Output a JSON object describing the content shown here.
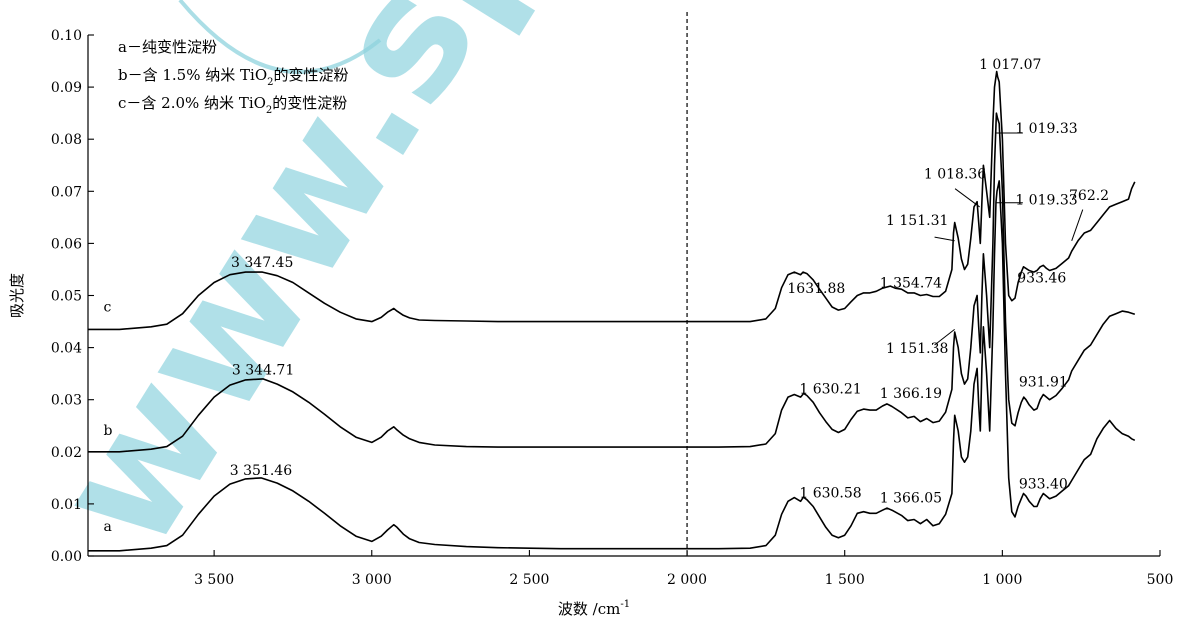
{
  "watermark": {
    "text": "www.spm"
  },
  "chart_data": {
    "type": "line",
    "title": "",
    "xlabel": "波数 /cm",
    "xlabel_sup": "-1",
    "ylabel": "吸光度",
    "x_reversed": true,
    "xlim": [
      3900,
      500
    ],
    "ylim": [
      0,
      0.1
    ],
    "x_ticks": [
      {
        "value": 3500,
        "label": "3 500"
      },
      {
        "value": 3000,
        "label": "3 000"
      },
      {
        "value": 2500,
        "label": "2 500"
      },
      {
        "value": 2000,
        "label": "2 000"
      },
      {
        "value": 1500,
        "label": "1 500"
      },
      {
        "value": 1000,
        "label": "1 000"
      },
      {
        "value": 500,
        "label": "500"
      }
    ],
    "y_ticks": [
      {
        "value": 0.0,
        "label": "0.00"
      },
      {
        "value": 0.01,
        "label": "0.01"
      },
      {
        "value": 0.02,
        "label": "0.02"
      },
      {
        "value": 0.03,
        "label": "0.03"
      },
      {
        "value": 0.04,
        "label": "0.04"
      },
      {
        "value": 0.05,
        "label": "0.05"
      },
      {
        "value": 0.06,
        "label": "0.06"
      },
      {
        "value": 0.07,
        "label": "0.07"
      },
      {
        "value": 0.08,
        "label": "0.08"
      },
      {
        "value": 0.09,
        "label": "0.09"
      },
      {
        "value": 0.1,
        "label": "0.10"
      }
    ],
    "divider_x": 2000,
    "legend": {
      "position": "top-left",
      "entries": [
        {
          "text": "a－纯变性淀粉"
        },
        {
          "text": "b－含 1.5% 纳米 TiO",
          "sub": "2",
          "suffix": "的变性淀粉"
        },
        {
          "text": "c－含 2.0% 纳米 TiO",
          "sub": "2",
          "suffix": "的变性淀粉"
        }
      ]
    },
    "series": [
      {
        "name": "a",
        "x": [
          3900,
          3800,
          3700,
          3650,
          3600,
          3550,
          3500,
          3450,
          3400,
          3351,
          3300,
          3250,
          3200,
          3150,
          3100,
          3050,
          3000,
          2970,
          2950,
          2930,
          2920,
          2900,
          2880,
          2850,
          2800,
          2700,
          2600,
          2500,
          2400,
          2300,
          2200,
          2100,
          2000,
          1900,
          1800,
          1750,
          1720,
          1700,
          1680,
          1660,
          1640,
          1631,
          1620,
          1600,
          1580,
          1560,
          1540,
          1520,
          1500,
          1480,
          1460,
          1440,
          1420,
          1400,
          1380,
          1366,
          1350,
          1320,
          1300,
          1280,
          1260,
          1240,
          1220,
          1200,
          1180,
          1160,
          1155,
          1151,
          1140,
          1130,
          1120,
          1110,
          1100,
          1090,
          1080,
          1075,
          1070,
          1065,
          1060,
          1050,
          1040,
          1030,
          1025,
          1020,
          1017,
          1010,
          1000,
          990,
          980,
          970,
          960,
          950,
          940,
          933,
          925,
          915,
          900,
          890,
          880,
          870,
          860,
          850,
          830,
          810,
          790,
          780,
          760,
          740,
          720,
          700,
          680,
          660,
          640,
          620,
          600,
          590,
          580
        ],
        "y": [
          0.001,
          0.001,
          0.0015,
          0.002,
          0.004,
          0.008,
          0.0115,
          0.0138,
          0.0148,
          0.015,
          0.014,
          0.0125,
          0.0105,
          0.0082,
          0.0058,
          0.0038,
          0.0028,
          0.0038,
          0.005,
          0.006,
          0.0055,
          0.0042,
          0.0033,
          0.0026,
          0.0022,
          0.0018,
          0.0016,
          0.0015,
          0.0014,
          0.0014,
          0.0014,
          0.0014,
          0.0014,
          0.0014,
          0.0015,
          0.002,
          0.004,
          0.008,
          0.0105,
          0.0112,
          0.0105,
          0.0113,
          0.0108,
          0.0095,
          0.0075,
          0.0055,
          0.004,
          0.0035,
          0.004,
          0.0058,
          0.0082,
          0.0085,
          0.0082,
          0.0082,
          0.0088,
          0.0092,
          0.0088,
          0.0078,
          0.0068,
          0.007,
          0.0062,
          0.007,
          0.0058,
          0.0062,
          0.008,
          0.012,
          0.022,
          0.027,
          0.024,
          0.019,
          0.018,
          0.019,
          0.024,
          0.033,
          0.036,
          0.029,
          0.024,
          0.036,
          0.044,
          0.035,
          0.024,
          0.044,
          0.058,
          0.068,
          0.07,
          0.072,
          0.06,
          0.035,
          0.015,
          0.0085,
          0.0075,
          0.0095,
          0.011,
          0.012,
          0.0115,
          0.0105,
          0.0095,
          0.0095,
          0.011,
          0.012,
          0.0115,
          0.011,
          0.0115,
          0.0125,
          0.0135,
          0.0145,
          0.0165,
          0.0185,
          0.0195,
          0.0225,
          0.0245,
          0.026,
          0.0245,
          0.0235,
          0.023,
          0.0225,
          0.0222
        ]
      },
      {
        "name": "b",
        "x": [
          3900,
          3800,
          3700,
          3650,
          3600,
          3550,
          3500,
          3450,
          3400,
          3345,
          3300,
          3250,
          3200,
          3150,
          3100,
          3050,
          3000,
          2970,
          2950,
          2930,
          2920,
          2900,
          2880,
          2850,
          2800,
          2700,
          2600,
          2500,
          2400,
          2300,
          2200,
          2100,
          2000,
          1900,
          1800,
          1750,
          1720,
          1700,
          1680,
          1660,
          1640,
          1630,
          1620,
          1600,
          1580,
          1560,
          1540,
          1520,
          1500,
          1480,
          1460,
          1440,
          1420,
          1400,
          1380,
          1366,
          1350,
          1320,
          1300,
          1280,
          1260,
          1240,
          1220,
          1200,
          1180,
          1160,
          1155,
          1151,
          1140,
          1130,
          1120,
          1110,
          1100,
          1090,
          1080,
          1075,
          1070,
          1065,
          1060,
          1050,
          1040,
          1030,
          1025,
          1019,
          1015,
          1010,
          1000,
          990,
          980,
          970,
          960,
          950,
          940,
          932,
          925,
          915,
          900,
          890,
          880,
          870,
          860,
          850,
          830,
          810,
          790,
          780,
          760,
          740,
          720,
          700,
          680,
          660,
          640,
          620,
          600,
          590,
          580
        ],
        "y": [
          0.02,
          0.02,
          0.0205,
          0.021,
          0.023,
          0.027,
          0.0305,
          0.0328,
          0.0338,
          0.034,
          0.033,
          0.0315,
          0.0295,
          0.0272,
          0.0248,
          0.0228,
          0.0218,
          0.0228,
          0.024,
          0.0248,
          0.0242,
          0.0232,
          0.0225,
          0.0218,
          0.0213,
          0.021,
          0.0209,
          0.0209,
          0.0209,
          0.0209,
          0.0209,
          0.0209,
          0.0209,
          0.0209,
          0.021,
          0.0215,
          0.0235,
          0.028,
          0.0305,
          0.031,
          0.0305,
          0.0312,
          0.0308,
          0.0295,
          0.0275,
          0.0258,
          0.0243,
          0.0237,
          0.0243,
          0.0262,
          0.0278,
          0.0282,
          0.028,
          0.028,
          0.0288,
          0.0292,
          0.0287,
          0.0275,
          0.0265,
          0.0268,
          0.0258,
          0.0264,
          0.0256,
          0.0259,
          0.0276,
          0.032,
          0.04,
          0.043,
          0.04,
          0.035,
          0.033,
          0.034,
          0.04,
          0.048,
          0.05,
          0.044,
          0.039,
          0.05,
          0.058,
          0.05,
          0.04,
          0.06,
          0.075,
          0.085,
          0.084,
          0.083,
          0.07,
          0.045,
          0.03,
          0.0255,
          0.025,
          0.0275,
          0.0295,
          0.0305,
          0.03,
          0.029,
          0.028,
          0.0283,
          0.03,
          0.031,
          0.0305,
          0.03,
          0.0308,
          0.0322,
          0.0338,
          0.0355,
          0.0375,
          0.0395,
          0.0405,
          0.0425,
          0.0445,
          0.046,
          0.0465,
          0.047,
          0.0468,
          0.0466,
          0.0464
        ]
      },
      {
        "name": "c",
        "x": [
          3900,
          3800,
          3700,
          3650,
          3600,
          3550,
          3500,
          3450,
          3400,
          3347,
          3300,
          3250,
          3200,
          3150,
          3100,
          3050,
          3000,
          2970,
          2950,
          2930,
          2920,
          2900,
          2880,
          2850,
          2800,
          2700,
          2600,
          2500,
          2400,
          2300,
          2200,
          2100,
          2000,
          1900,
          1800,
          1750,
          1720,
          1700,
          1680,
          1660,
          1640,
          1632,
          1620,
          1600,
          1580,
          1560,
          1540,
          1520,
          1500,
          1480,
          1460,
          1440,
          1420,
          1400,
          1380,
          1355,
          1340,
          1320,
          1300,
          1280,
          1260,
          1240,
          1220,
          1200,
          1180,
          1160,
          1155,
          1151,
          1140,
          1130,
          1120,
          1110,
          1100,
          1090,
          1080,
          1075,
          1070,
          1065,
          1060,
          1050,
          1040,
          1030,
          1025,
          1018,
          1015,
          1010,
          1000,
          990,
          980,
          970,
          960,
          950,
          940,
          933,
          925,
          915,
          900,
          890,
          880,
          870,
          860,
          850,
          830,
          810,
          790,
          780,
          760,
          740,
          720,
          700,
          680,
          660,
          640,
          620,
          600,
          590,
          580
        ],
        "y": [
          0.0435,
          0.0435,
          0.044,
          0.0445,
          0.0465,
          0.05,
          0.0525,
          0.054,
          0.0545,
          0.0545,
          0.0538,
          0.0525,
          0.0505,
          0.0485,
          0.0468,
          0.0455,
          0.045,
          0.0458,
          0.0468,
          0.0475,
          0.047,
          0.0462,
          0.0457,
          0.0453,
          0.0452,
          0.0451,
          0.045,
          0.045,
          0.045,
          0.045,
          0.045,
          0.045,
          0.045,
          0.045,
          0.045,
          0.0455,
          0.0475,
          0.0515,
          0.054,
          0.0545,
          0.054,
          0.0545,
          0.0542,
          0.053,
          0.0512,
          0.0495,
          0.0478,
          0.0472,
          0.0475,
          0.0488,
          0.05,
          0.0505,
          0.0505,
          0.0508,
          0.0514,
          0.0518,
          0.0514,
          0.0512,
          0.0505,
          0.0505,
          0.05,
          0.0502,
          0.0498,
          0.0498,
          0.0508,
          0.055,
          0.062,
          0.064,
          0.061,
          0.057,
          0.055,
          0.056,
          0.061,
          0.067,
          0.068,
          0.064,
          0.06,
          0.068,
          0.075,
          0.07,
          0.065,
          0.083,
          0.09,
          0.093,
          0.092,
          0.091,
          0.08,
          0.06,
          0.05,
          0.049,
          0.0495,
          0.0525,
          0.0545,
          0.0555,
          0.0552,
          0.0548,
          0.0545,
          0.0548,
          0.0555,
          0.0558,
          0.0552,
          0.0548,
          0.0552,
          0.0562,
          0.0572,
          0.0585,
          0.0605,
          0.062,
          0.0625,
          0.064,
          0.0655,
          0.067,
          0.0675,
          0.068,
          0.0685,
          0.0705,
          0.0718
        ]
      }
    ],
    "curve_letters": [
      {
        "text": "a",
        "series": "a",
        "x": 3870,
        "y": 0.004
      },
      {
        "text": "b",
        "series": "b",
        "x": 3870,
        "y": 0.0225
      },
      {
        "text": "c",
        "series": "c",
        "x": 3870,
        "y": 0.0462
      }
    ],
    "annotations": [
      {
        "text": "3 351.46",
        "x": 3351.46,
        "y": 0.0155
      },
      {
        "text": "3 344.71",
        "x": 3344.71,
        "y": 0.0348
      },
      {
        "text": "3 347.45",
        "x": 3347.45,
        "y": 0.0555
      },
      {
        "text": "1 630.58",
        "x": 1545,
        "y": 0.0112
      },
      {
        "text": "1 630.21",
        "x": 1545,
        "y": 0.0312
      },
      {
        "text": "1631.88",
        "x": 1590,
        "y": 0.0505
      },
      {
        "text": "1 366.05",
        "x": 1290,
        "y": 0.0103
      },
      {
        "text": "1 366.19",
        "x": 1290,
        "y": 0.0303
      },
      {
        "text": "1 354.74",
        "x": 1290,
        "y": 0.0515
      },
      {
        "text": "933.40",
        "x": 870,
        "y": 0.013
      },
      {
        "text": "931.91",
        "x": 870,
        "y": 0.0325
      },
      {
        "text": "933.46",
        "x": 875,
        "y": 0.0525
      },
      {
        "text": "1 151.38",
        "x": 1270,
        "y": 0.039
      },
      {
        "text": "1 151.31",
        "x": 1270,
        "y": 0.0635
      },
      {
        "text": "1 018.36",
        "x": 1150,
        "y": 0.0725
      },
      {
        "text": "1 019.33",
        "x": 860,
        "y": 0.0675
      },
      {
        "text": "1 019.33",
        "x": 860,
        "y": 0.0812
      },
      {
        "text": "1 017.07",
        "x": 975,
        "y": 0.0935
      },
      {
        "text": "762.2",
        "x": 725,
        "y": 0.0683
      }
    ],
    "leaders": [
      {
        "x1": 1215,
        "y1": 0.0405,
        "x2": 1151.38,
        "y2": 0.0435
      },
      {
        "x1": 1215,
        "y1": 0.0612,
        "x2": 1151.31,
        "y2": 0.0605
      },
      {
        "x1": 1150,
        "y1": 0.0705,
        "x2": 1072,
        "y2": 0.067
      },
      {
        "x1": 935,
        "y1": 0.0812,
        "x2": 1019.33,
        "y2": 0.0812
      },
      {
        "x1": 935,
        "y1": 0.0678,
        "x2": 1019.33,
        "y2": 0.0678
      },
      {
        "x1": 745,
        "y1": 0.0665,
        "x2": 780,
        "y2": 0.0605
      }
    ]
  }
}
